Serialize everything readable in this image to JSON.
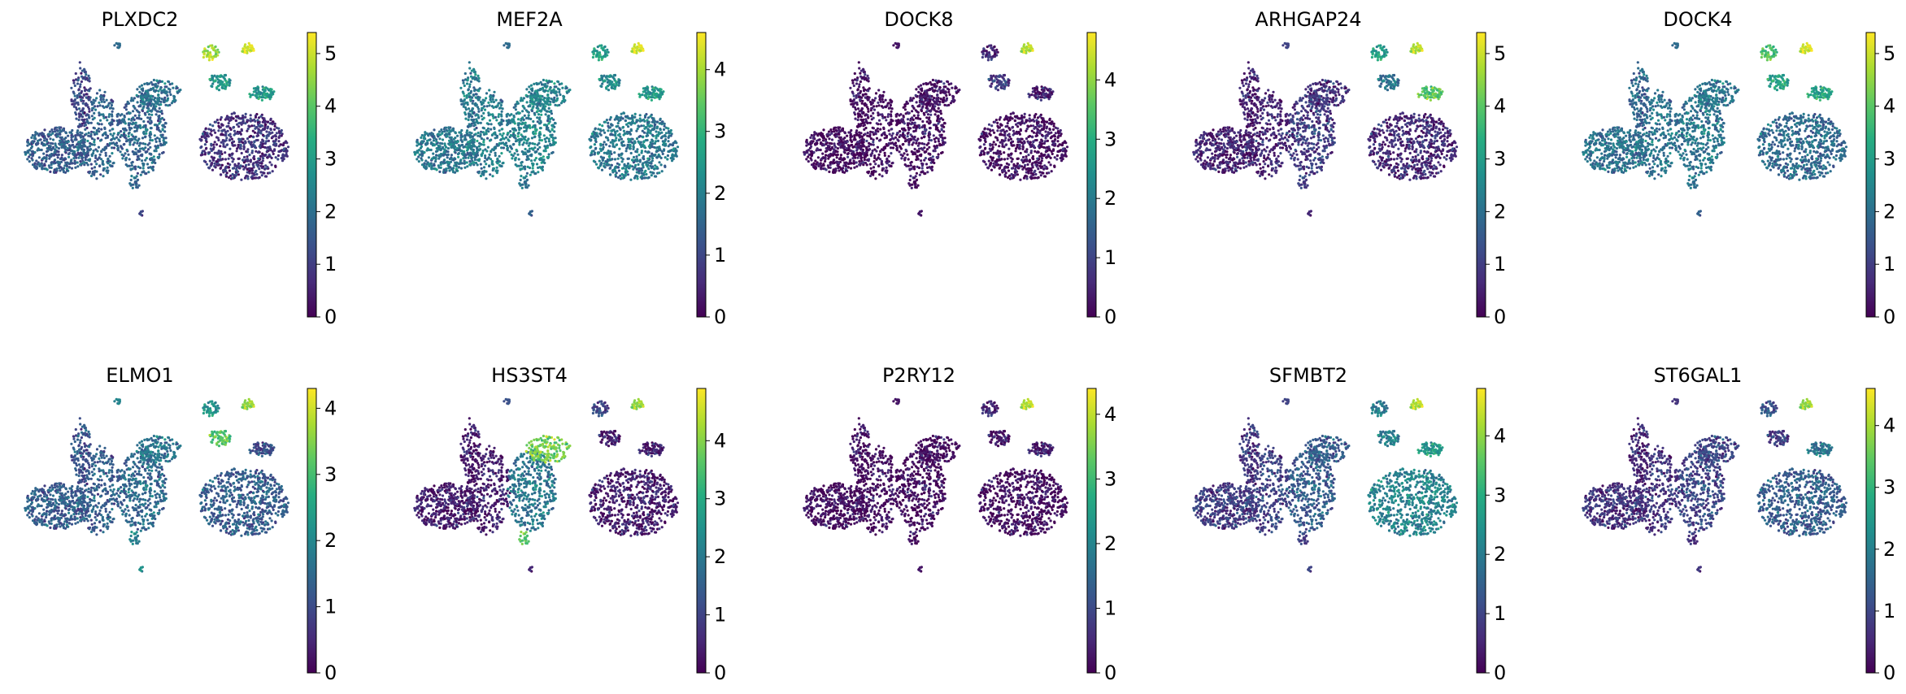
{
  "colormap": "viridis",
  "colors": {
    "background": "#ffffff",
    "text": "#000000",
    "viridis_stops": [
      "#440154",
      "#472c7a",
      "#3b518b",
      "#2c718e",
      "#21908d",
      "#27ad81",
      "#5cc863",
      "#aadc32",
      "#fde725"
    ]
  },
  "chart_data": [
    {
      "type": "scatter",
      "title": "PLXDC2",
      "colorbar": {
        "min": 0,
        "max": 5.4,
        "ticks": [
          "0",
          "1",
          "2",
          "3",
          "4",
          "5"
        ]
      }
    },
    {
      "type": "scatter",
      "title": "MEF2A",
      "colorbar": {
        "min": 0,
        "max": 4.6,
        "ticks": [
          "0",
          "1",
          "2",
          "3",
          "4"
        ]
      }
    },
    {
      "type": "scatter",
      "title": "DOCK8",
      "colorbar": {
        "min": 0,
        "max": 4.8,
        "ticks": [
          "0",
          "1",
          "2",
          "3",
          "4"
        ]
      }
    },
    {
      "type": "scatter",
      "title": "ARHGAP24",
      "colorbar": {
        "min": 0,
        "max": 5.4,
        "ticks": [
          "0",
          "1",
          "2",
          "3",
          "4",
          "5"
        ]
      }
    },
    {
      "type": "scatter",
      "title": "DOCK4",
      "colorbar": {
        "min": 0,
        "max": 5.4,
        "ticks": [
          "0",
          "1",
          "2",
          "3",
          "4",
          "5"
        ]
      }
    },
    {
      "type": "scatter",
      "title": "ELMO1",
      "colorbar": {
        "min": 0,
        "max": 4.3,
        "ticks": [
          "0",
          "1",
          "2",
          "3",
          "4"
        ]
      }
    },
    {
      "type": "scatter",
      "title": "HS3ST4",
      "colorbar": {
        "min": 0,
        "max": 4.9,
        "ticks": [
          "0",
          "1",
          "2",
          "3",
          "4"
        ]
      }
    },
    {
      "type": "scatter",
      "title": "P2RY12",
      "colorbar": {
        "min": 0,
        "max": 4.4,
        "ticks": [
          "0",
          "1",
          "2",
          "3",
          "4"
        ]
      }
    },
    {
      "type": "scatter",
      "title": "SFMBT2",
      "colorbar": {
        "min": 0,
        "max": 4.8,
        "ticks": [
          "0",
          "1",
          "2",
          "3",
          "4"
        ]
      }
    },
    {
      "type": "scatter",
      "title": "ST6GAL1",
      "colorbar": {
        "min": 0,
        "max": 4.6,
        "ticks": [
          "0",
          "1",
          "2",
          "3",
          "4"
        ]
      }
    }
  ]
}
